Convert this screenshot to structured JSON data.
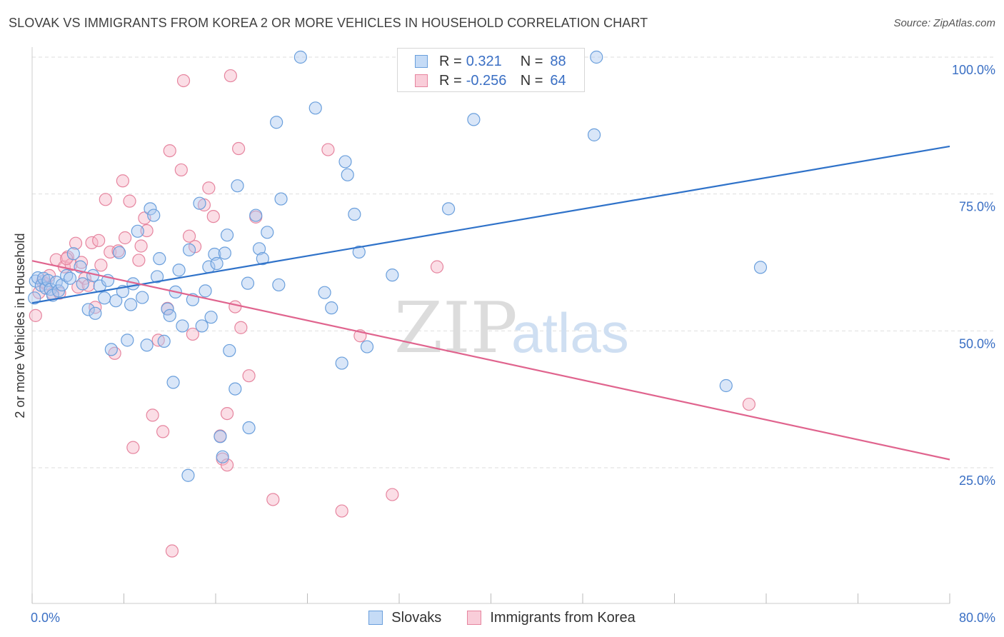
{
  "title": "SLOVAK VS IMMIGRANTS FROM KOREA 2 OR MORE VEHICLES IN HOUSEHOLD CORRELATION CHART",
  "source": "Source: ZipAtlas.com",
  "watermark": {
    "zip": "ZIP",
    "atlas": "atlas"
  },
  "colors": {
    "blue_fill": "#aac8f0",
    "blue_stroke": "#6a9fdc",
    "blue_line": "#2f72c9",
    "pink_fill": "#f6b6c8",
    "pink_stroke": "#e6859f",
    "pink_line": "#e0648e",
    "tick_label": "#3a6fc4",
    "grid": "#dedede"
  },
  "legend": {
    "rows": [
      {
        "r_label": "R =",
        "r_value": "0.321",
        "n_label": "N =",
        "n_value": "88",
        "series": "blue"
      },
      {
        "r_label": "R =",
        "r_value": "-0.256",
        "n_label": "N =",
        "n_value": "64",
        "series": "pink"
      }
    ]
  },
  "bottom_legend": [
    "Slovaks",
    "Immigrants from Korea"
  ],
  "chart_data": {
    "type": "scatter",
    "title": "SLOVAK VS IMMIGRANTS FROM KOREA 2 OR MORE VEHICLES IN HOUSEHOLD CORRELATION CHART",
    "xlabel": "",
    "ylabel": "2 or more Vehicles in Household",
    "xlim": [
      0,
      80
    ],
    "ylim": [
      0,
      105
    ],
    "x_tick_labels": [
      "0.0%",
      "80.0%"
    ],
    "y_ticks": [
      25,
      50,
      75,
      100
    ],
    "y_tick_labels": [
      "25.0%",
      "50.0%",
      "75.0%",
      "100.0%"
    ],
    "grid": "horizontal dashed",
    "legend_placement": "top-center",
    "series": [
      {
        "name": "Slovaks",
        "color": "blue",
        "trend": {
          "x": [
            0,
            80
          ],
          "y": [
            55.1,
            83.7
          ]
        },
        "points": [
          [
            0.3,
            59.1
          ],
          [
            0.5,
            59.7
          ],
          [
            0.8,
            58.3
          ],
          [
            1.0,
            59.6
          ],
          [
            1.2,
            57.8
          ],
          [
            1.4,
            59.2
          ],
          [
            1.6,
            57.6
          ],
          [
            1.8,
            56.5
          ],
          [
            2.1,
            58.9
          ],
          [
            2.3,
            57.3
          ],
          [
            2.6,
            58.4
          ],
          [
            3.0,
            60.1
          ],
          [
            3.3,
            59.6
          ],
          [
            3.6,
            64.1
          ],
          [
            4.2,
            61.7
          ],
          [
            4.4,
            58.6
          ],
          [
            4.9,
            53.9
          ],
          [
            5.3,
            60.1
          ],
          [
            5.5,
            53.2
          ],
          [
            5.9,
            58.2
          ],
          [
            6.3,
            56.0
          ],
          [
            6.6,
            59.2
          ],
          [
            6.9,
            46.6
          ],
          [
            7.3,
            55.5
          ],
          [
            7.6,
            64.3
          ],
          [
            7.9,
            57.2
          ],
          [
            8.3,
            48.3
          ],
          [
            8.6,
            54.8
          ],
          [
            8.8,
            58.6
          ],
          [
            9.2,
            68.2
          ],
          [
            9.6,
            56.1
          ],
          [
            10.0,
            47.4
          ],
          [
            10.3,
            72.3
          ],
          [
            10.6,
            71.1
          ],
          [
            10.9,
            59.9
          ],
          [
            11.1,
            63.2
          ],
          [
            11.5,
            48.1
          ],
          [
            11.8,
            54.0
          ],
          [
            12.0,
            52.8
          ],
          [
            12.3,
            40.6
          ],
          [
            12.5,
            57.1
          ],
          [
            12.8,
            61.1
          ],
          [
            13.1,
            50.9
          ],
          [
            13.6,
            23.6
          ],
          [
            13.7,
            64.8
          ],
          [
            14.0,
            55.7
          ],
          [
            14.6,
            73.3
          ],
          [
            14.8,
            50.9
          ],
          [
            15.1,
            57.3
          ],
          [
            15.4,
            61.7
          ],
          [
            15.6,
            52.5
          ],
          [
            15.9,
            64.0
          ],
          [
            16.1,
            62.3
          ],
          [
            16.4,
            30.7
          ],
          [
            16.6,
            27.0
          ],
          [
            16.8,
            64.2
          ],
          [
            17.0,
            67.5
          ],
          [
            17.2,
            46.4
          ],
          [
            17.7,
            39.4
          ],
          [
            17.9,
            76.5
          ],
          [
            18.8,
            58.7
          ],
          [
            18.9,
            32.3
          ],
          [
            19.5,
            71.1
          ],
          [
            19.8,
            65.0
          ],
          [
            20.1,
            63.2
          ],
          [
            20.5,
            68.0
          ],
          [
            21.3,
            88.1
          ],
          [
            21.5,
            58.4
          ],
          [
            21.7,
            74.1
          ],
          [
            23.4,
            100.0
          ],
          [
            24.7,
            90.7
          ],
          [
            25.5,
            57.0
          ],
          [
            26.1,
            54.2
          ],
          [
            27.0,
            44.1
          ],
          [
            27.3,
            80.9
          ],
          [
            27.5,
            78.5
          ],
          [
            28.1,
            71.3
          ],
          [
            28.5,
            64.4
          ],
          [
            29.2,
            47.1
          ],
          [
            31.4,
            60.2
          ],
          [
            36.3,
            72.3
          ],
          [
            38.0,
            100.0
          ],
          [
            38.5,
            88.6
          ],
          [
            49.0,
            85.8
          ],
          [
            49.2,
            100.0
          ],
          [
            60.5,
            40.0
          ],
          [
            63.5,
            61.6
          ],
          [
            0.2,
            56.0
          ]
        ]
      },
      {
        "name": "Immigrants from Korea",
        "color": "pink",
        "trend": {
          "x": [
            0,
            80
          ],
          "y": [
            62.8,
            26.5
          ]
        },
        "points": [
          [
            0.3,
            52.8
          ],
          [
            0.6,
            57.0
          ],
          [
            0.9,
            59.0
          ],
          [
            1.2,
            58.6
          ],
          [
            1.5,
            60.1
          ],
          [
            1.8,
            56.8
          ],
          [
            2.1,
            63.0
          ],
          [
            2.4,
            56.9
          ],
          [
            2.8,
            61.7
          ],
          [
            3.1,
            63.5
          ],
          [
            3.4,
            62.1
          ],
          [
            3.8,
            66.0
          ],
          [
            4.0,
            58.0
          ],
          [
            4.3,
            62.5
          ],
          [
            4.6,
            59.6
          ],
          [
            4.9,
            58.3
          ],
          [
            5.2,
            66.1
          ],
          [
            5.5,
            54.3
          ],
          [
            5.8,
            66.5
          ],
          [
            6.0,
            62.0
          ],
          [
            6.4,
            74.0
          ],
          [
            6.8,
            64.4
          ],
          [
            7.2,
            45.9
          ],
          [
            7.5,
            64.6
          ],
          [
            7.9,
            77.4
          ],
          [
            8.1,
            67.0
          ],
          [
            8.5,
            73.7
          ],
          [
            8.8,
            28.7
          ],
          [
            9.3,
            62.9
          ],
          [
            9.5,
            65.5
          ],
          [
            9.8,
            70.6
          ],
          [
            10.0,
            68.3
          ],
          [
            10.5,
            34.6
          ],
          [
            11.0,
            48.3
          ],
          [
            11.4,
            31.6
          ],
          [
            11.8,
            54.1
          ],
          [
            12.0,
            82.9
          ],
          [
            12.2,
            9.8
          ],
          [
            13.0,
            79.4
          ],
          [
            13.2,
            95.7
          ],
          [
            13.7,
            67.3
          ],
          [
            14.0,
            49.4
          ],
          [
            14.2,
            65.4
          ],
          [
            15.0,
            73.0
          ],
          [
            15.4,
            76.1
          ],
          [
            15.8,
            70.9
          ],
          [
            16.4,
            30.8
          ],
          [
            16.6,
            26.6
          ],
          [
            17.0,
            34.9
          ],
          [
            17.0,
            25.5
          ],
          [
            17.3,
            96.6
          ],
          [
            17.7,
            54.4
          ],
          [
            18.0,
            83.3
          ],
          [
            18.2,
            50.6
          ],
          [
            18.9,
            41.8
          ],
          [
            19.5,
            70.8
          ],
          [
            21.0,
            19.2
          ],
          [
            25.8,
            83.1
          ],
          [
            27.0,
            17.1
          ],
          [
            28.6,
            49.1
          ],
          [
            31.4,
            20.1
          ],
          [
            35.3,
            61.7
          ],
          [
            62.5,
            36.6
          ],
          [
            3.0,
            63.2
          ]
        ]
      }
    ]
  }
}
